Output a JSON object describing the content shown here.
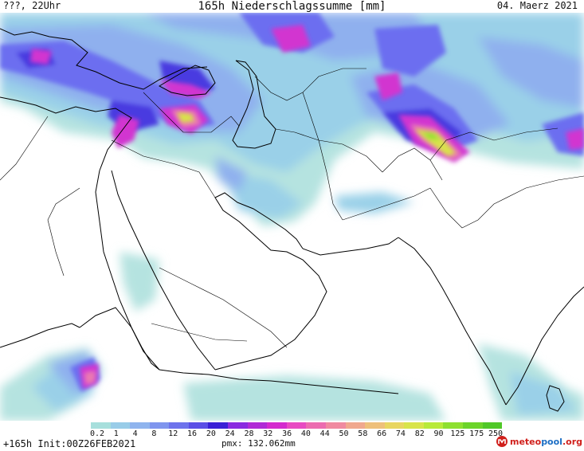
{
  "header": {
    "valid_time": "???, 22Uhr",
    "title": "165h Niederschlagssumme [mm]",
    "date": "04. Maerz 2021"
  },
  "legend": {
    "ticks": [
      "0.2",
      "1",
      "4",
      "8",
      "12",
      "16",
      "20",
      "24",
      "28",
      "32",
      "36",
      "40",
      "44",
      "50",
      "58",
      "66",
      "74",
      "82",
      "90",
      "125",
      "175",
      "250"
    ],
    "colors": [
      "#a7dfdc",
      "#98cce8",
      "#8fb4ee",
      "#7f95ee",
      "#6e73ec",
      "#5b4fe6",
      "#3a20d6",
      "#8a2ae0",
      "#b02ad6",
      "#d42ace",
      "#e84ac2",
      "#ec6cb0",
      "#f08aa0",
      "#f0a88e",
      "#eec07a",
      "#e8d660",
      "#d8e44a",
      "#b8ea3a",
      "#8ee030",
      "#6cd42a",
      "#50c828"
    ]
  },
  "footer": {
    "run": "+165h Init:00Z26FEB2021",
    "max": "pmx: 132.062mm"
  },
  "brand": {
    "name_red": "meteo",
    "name_blue": "pool",
    "suffix": ".org"
  }
}
